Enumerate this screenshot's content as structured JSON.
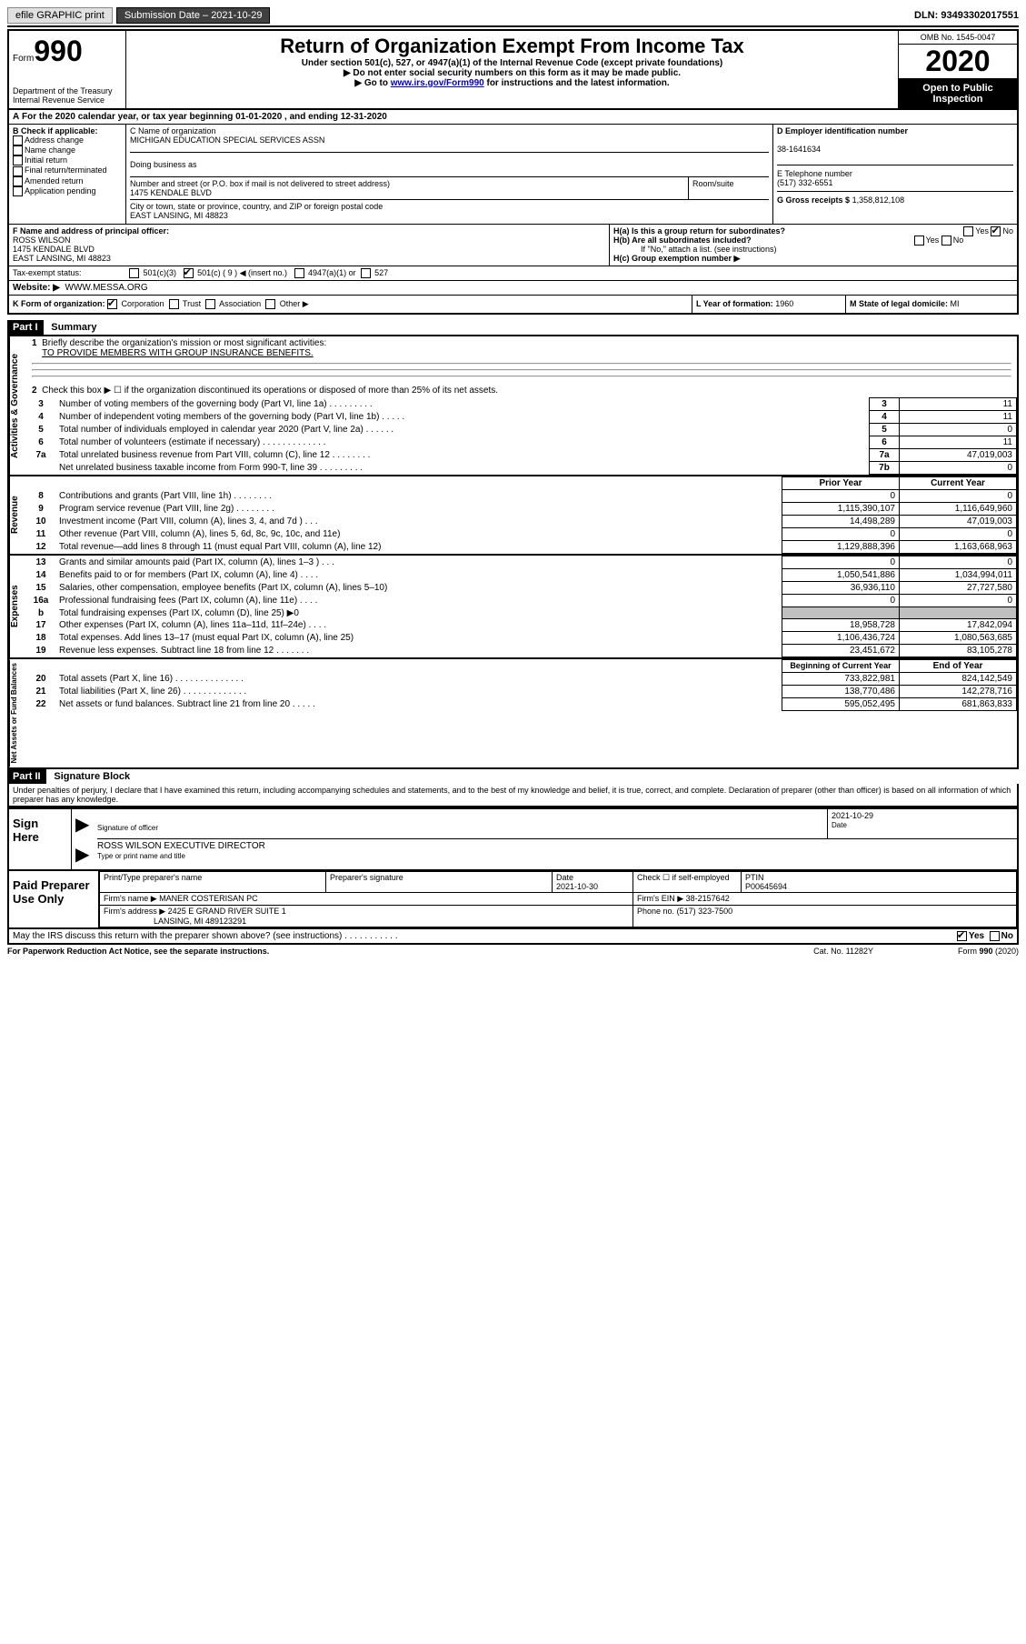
{
  "top": {
    "efile": "efile GRAPHIC print",
    "subdate_label": "Submission Date – 2021-10-29",
    "dln": "DLN: 93493302017551"
  },
  "header": {
    "form_label": "Form",
    "form_num": "990",
    "dept": "Department of the Treasury",
    "irs": "Internal Revenue Service",
    "title": "Return of Organization Exempt From Income Tax",
    "sub1": "Under section 501(c), 527, or 4947(a)(1) of the Internal Revenue Code (except private foundations)",
    "sub2": "▶ Do not enter social security numbers on this form as it may be made public.",
    "sub3a": "▶ Go to ",
    "sub3_link": "www.irs.gov/Form990",
    "sub3b": " for instructions and the latest information.",
    "omb": "OMB No. 1545-0047",
    "year": "2020",
    "open1": "Open to Public",
    "open2": "Inspection"
  },
  "lineA": "For the 2020 calendar year, or tax year beginning 01-01-2020    , and ending 12-31-2020",
  "boxB": {
    "label": "B Check if applicable:",
    "opts": [
      "Address change",
      "Name change",
      "Initial return",
      "Final return/terminated",
      "Amended return",
      "Application pending"
    ]
  },
  "boxC": {
    "name_label": "C Name of organization",
    "name": "MICHIGAN EDUCATION SPECIAL SERVICES ASSN",
    "dba_label": "Doing business as",
    "addr_label": "Number and street (or P.O. box if mail is not delivered to street address)",
    "room_label": "Room/suite",
    "addr": "1475 KENDALE BLVD",
    "city_label": "City or town, state or province, country, and ZIP or foreign postal code",
    "city": "EAST LANSING, MI  48823"
  },
  "boxD": {
    "label": "D Employer identification number",
    "ein": "38-1641634"
  },
  "boxE": {
    "label": "E Telephone number",
    "phone": "(517) 332-6551"
  },
  "boxG": {
    "label": "G Gross receipts $",
    "amount": "1,358,812,108"
  },
  "boxF": {
    "label": "F Name and address of principal officer:",
    "name": "ROSS WILSON",
    "addr1": "1475 KENDALE BLVD",
    "addr2": "EAST LANSING, MI  48823"
  },
  "boxH": {
    "ha": "H(a)  Is this a group return for subordinates?",
    "hb": "H(b)  Are all subordinates included?",
    "hb_note": "If \"No,\" attach a list. (see instructions)",
    "hc": "H(c)  Group exemption number ▶",
    "yes": "Yes",
    "no": "No"
  },
  "taxexempt": {
    "label": "Tax-exempt status:",
    "o1": "501(c)(3)",
    "o2": "501(c) ( 9 ) ◀ (insert no.)",
    "o3": "4947(a)(1) or",
    "o4": "527"
  },
  "website": {
    "label": "Website: ▶",
    "value": "WWW.MESSA.ORG"
  },
  "lineK": {
    "label": "K Form of organization:",
    "o1": "Corporation",
    "o2": "Trust",
    "o3": "Association",
    "o4": "Other ▶"
  },
  "lineL": {
    "label": "L Year of formation:",
    "value": "1960"
  },
  "lineM": {
    "label": "M State of legal domicile:",
    "value": "MI"
  },
  "part1": {
    "header": "Part I",
    "title": "Summary",
    "side_ag": "Activities & Governance",
    "side_rev": "Revenue",
    "side_exp": "Expenses",
    "side_na": "Net Assets or Fund Balances",
    "q1": "Briefly describe the organization's mission or most significant activities:",
    "q1_ans": "TO PROVIDE MEMBERS WITH GROUP INSURANCE BENEFITS.",
    "q2": "Check this box ▶ ☐  if the organization discontinued its operations or disposed of more than 25% of its net assets.",
    "rows": [
      {
        "n": "3",
        "t": "Number of voting members of the governing body (Part VI, line 1a)   .    .    .    .    .    .    .    .    .",
        "box": "3",
        "v": "11"
      },
      {
        "n": "4",
        "t": "Number of independent voting members of the governing body (Part VI, line 1b)   .    .    .    .    .",
        "box": "4",
        "v": "11"
      },
      {
        "n": "5",
        "t": "Total number of individuals employed in calendar year 2020 (Part V, line 2a)   .    .    .    .    .    .",
        "box": "5",
        "v": "0"
      },
      {
        "n": "6",
        "t": "Total number of volunteers (estimate if necessary)   .    .    .    .    .    .    .    .    .    .    .    .    .",
        "box": "6",
        "v": "11"
      },
      {
        "n": "7a",
        "t": "Total unrelated business revenue from Part VIII, column (C), line 12   .    .    .    .    .    .    .    .",
        "box": "7a",
        "v": "47,019,003"
      },
      {
        "n": "",
        "t": "Net unrelated business taxable income from Form 990-T, line 39   .    .    .    .    .    .    .    .    .",
        "box": "7b",
        "v": "0"
      }
    ],
    "col_prior": "Prior Year",
    "col_current": "Current Year",
    "rev_rows": [
      {
        "n": "8",
        "t": "Contributions and grants (Part VIII, line 1h)   .    .    .    .    .    .    .    .",
        "p": "0",
        "c": "0"
      },
      {
        "n": "9",
        "t": "Program service revenue (Part VIII, line 2g)   .    .    .    .    .    .    .    .",
        "p": "1,115,390,107",
        "c": "1,116,649,960"
      },
      {
        "n": "10",
        "t": "Investment income (Part VIII, column (A), lines 3, 4, and 7d )   .    .    .",
        "p": "14,498,289",
        "c": "47,019,003"
      },
      {
        "n": "11",
        "t": "Other revenue (Part VIII, column (A), lines 5, 6d, 8c, 9c, 10c, and 11e)",
        "p": "0",
        "c": "0"
      },
      {
        "n": "12",
        "t": "Total revenue—add lines 8 through 11 (must equal Part VIII, column (A), line 12)",
        "p": "1,129,888,396",
        "c": "1,163,668,963"
      }
    ],
    "exp_rows": [
      {
        "n": "13",
        "t": "Grants and similar amounts paid (Part IX, column (A), lines 1–3 )   .    .    .",
        "p": "0",
        "c": "0"
      },
      {
        "n": "14",
        "t": "Benefits paid to or for members (Part IX, column (A), line 4)   .    .    .    .",
        "p": "1,050,541,886",
        "c": "1,034,994,011"
      },
      {
        "n": "15",
        "t": "Salaries, other compensation, employee benefits (Part IX, column (A), lines 5–10)",
        "p": "36,936,110",
        "c": "27,727,580"
      },
      {
        "n": "16a",
        "t": "Professional fundraising fees (Part IX, column (A), line 11e)   .    .    .    .",
        "p": "0",
        "c": "0"
      },
      {
        "n": "b",
        "t": "Total fundraising expenses (Part IX, column (D), line 25) ▶0",
        "p": "shaded",
        "c": "shaded"
      },
      {
        "n": "17",
        "t": "Other expenses (Part IX, column (A), lines 11a–11d, 11f–24e)   .    .    .    .",
        "p": "18,958,728",
        "c": "17,842,094"
      },
      {
        "n": "18",
        "t": "Total expenses. Add lines 13–17 (must equal Part IX, column (A), line 25)",
        "p": "1,106,436,724",
        "c": "1,080,563,685"
      },
      {
        "n": "19",
        "t": "Revenue less expenses. Subtract line 18 from line 12   .    .    .    .    .    .    .",
        "p": "23,451,672",
        "c": "83,105,278"
      }
    ],
    "col_begin": "Beginning of Current Year",
    "col_end": "End of Year",
    "na_rows": [
      {
        "n": "20",
        "t": "Total assets (Part X, line 16)   .    .    .    .    .    .    .    .    .    .    .    .    .    .",
        "p": "733,822,981",
        "c": "824,142,549"
      },
      {
        "n": "21",
        "t": "Total liabilities (Part X, line 26)   .    .    .    .    .    .    .    .    .    .    .    .    .",
        "p": "138,770,486",
        "c": "142,278,716"
      },
      {
        "n": "22",
        "t": "Net assets or fund balances. Subtract line 21 from line 20   .    .    .    .    .",
        "p": "595,052,495",
        "c": "681,863,833"
      }
    ]
  },
  "part2": {
    "header": "Part II",
    "title": "Signature Block",
    "decl": "Under penalties of perjury, I declare that I have examined this return, including accompanying schedules and statements, and to the best of my knowledge and belief, it is true, correct, and complete. Declaration of preparer (other than officer) is based on all information of which preparer has any knowledge.",
    "sign_here": "Sign Here",
    "sig_officer": "Signature of officer",
    "date_label": "Date",
    "date": "2021-10-29",
    "officer": "ROSS WILSON  EXECUTIVE DIRECTOR",
    "type_name": "Type or print name and title",
    "paid": "Paid Preparer Use Only",
    "prep_name_label": "Print/Type preparer's name",
    "prep_sig_label": "Preparer's signature",
    "prep_date_label": "Date",
    "prep_date": "2021-10-30",
    "check_se": "Check ☐ if self-employed",
    "ptin_label": "PTIN",
    "ptin": "P00645694",
    "firm_name_label": "Firm's name    ▶",
    "firm_name": "MANER COSTERISAN PC",
    "firm_ein_label": "Firm's EIN ▶",
    "firm_ein": "38-2157642",
    "firm_addr_label": "Firm's address ▶",
    "firm_addr1": "2425 E GRAND RIVER SUITE 1",
    "firm_addr2": "LANSING, MI  489123291",
    "phone_label": "Phone no.",
    "phone": "(517) 323-7500",
    "discuss": "May the IRS discuss this return with the preparer shown above? (see instructions)   .    .    .    .    .    .    .    .    .    .    .",
    "paperwork": "For Paperwork Reduction Act Notice, see the separate instructions.",
    "catno": "Cat. No. 11282Y",
    "formfoot": "Form 990 (2020)"
  }
}
